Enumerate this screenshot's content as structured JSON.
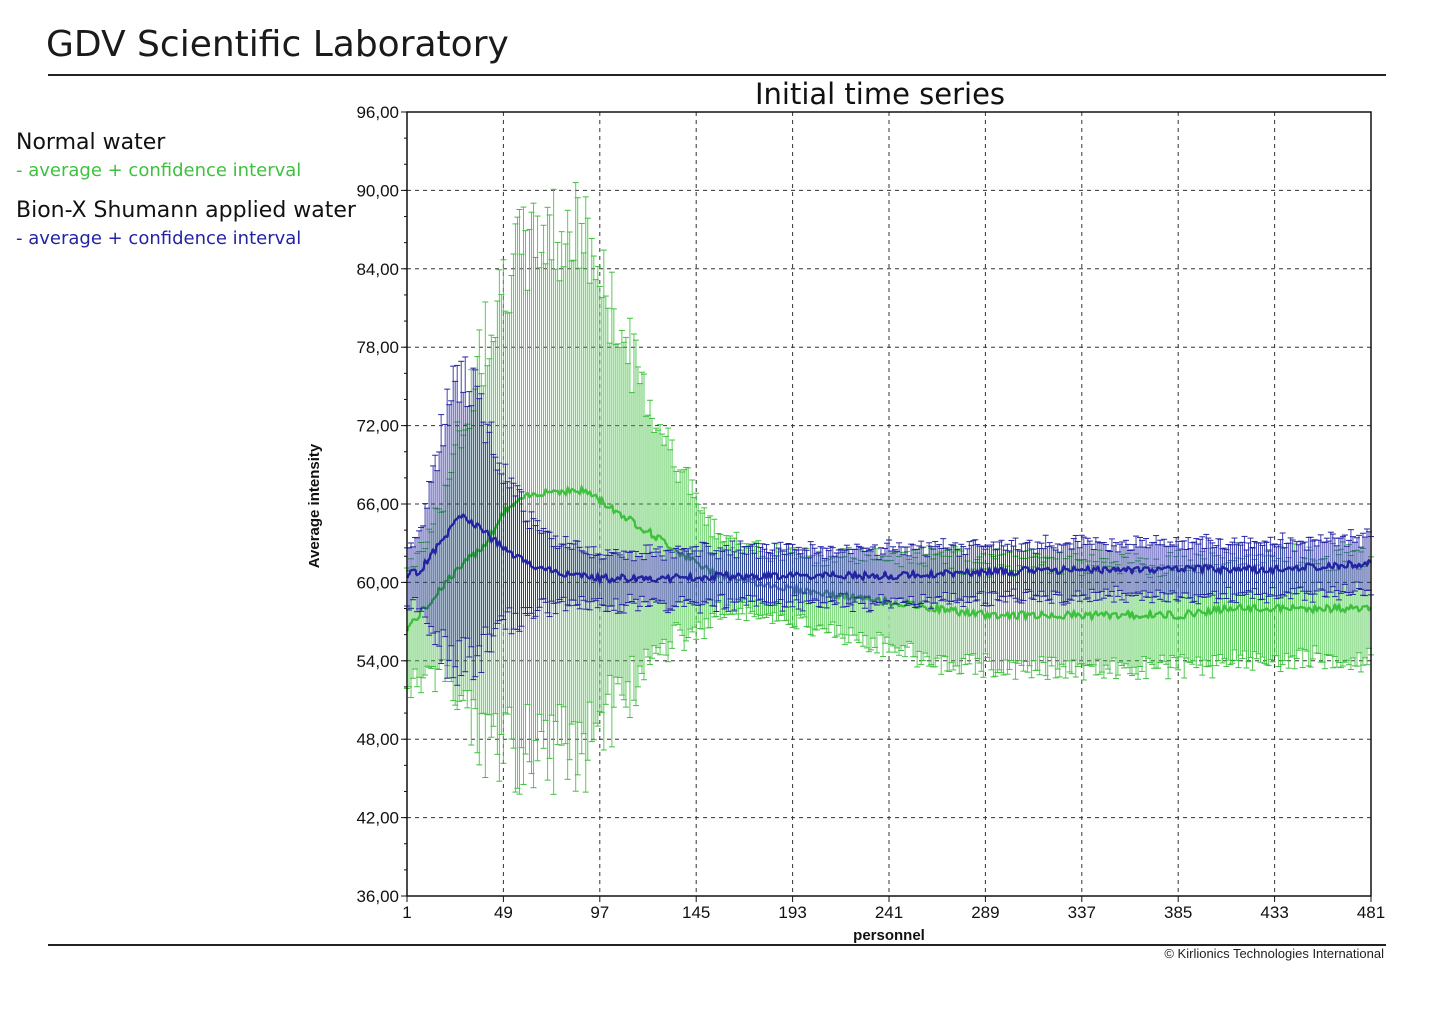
{
  "header": {
    "title": "GDV Scientific Laboratory",
    "copyright": "© Kirlionics Technologies International"
  },
  "legend": {
    "items": [
      {
        "name": "Normal water",
        "sub": "- average + confidence interval",
        "color": "#3ec13e"
      },
      {
        "name": "Bion-X Shumann applied water",
        "sub": "- average + confidence interval",
        "color": "#2323a3"
      }
    ]
  },
  "chart_data": {
    "type": "line",
    "title": "Initial time series",
    "xlabel": "personnel",
    "ylabel": "Average intensity",
    "xlim": [
      1,
      481
    ],
    "ylim": [
      36,
      96
    ],
    "x_ticks": [
      "1",
      "49",
      "97",
      "145",
      "193",
      "241",
      "289",
      "337",
      "385",
      "433",
      "481"
    ],
    "y_ticks": [
      "36,00",
      "42,00",
      "48,00",
      "54,00",
      "60,00",
      "66,00",
      "72,00",
      "78,00",
      "84,00",
      "90,00",
      "96,00"
    ],
    "grid": true,
    "series": [
      {
        "name": "Normal water",
        "color": "#3ec13e",
        "points": [
          {
            "x": 1,
            "y": 56.5,
            "ci": 4.5
          },
          {
            "x": 10,
            "y": 58.0,
            "ci": 5.0
          },
          {
            "x": 20,
            "y": 60.0,
            "ci": 7.0
          },
          {
            "x": 30,
            "y": 61.5,
            "ci": 11.0
          },
          {
            "x": 40,
            "y": 63.0,
            "ci": 16.0
          },
          {
            "x": 50,
            "y": 65.5,
            "ci": 18.5
          },
          {
            "x": 60,
            "y": 66.5,
            "ci": 19.0
          },
          {
            "x": 70,
            "y": 67.0,
            "ci": 20.0
          },
          {
            "x": 80,
            "y": 67.0,
            "ci": 20.0
          },
          {
            "x": 90,
            "y": 67.0,
            "ci": 19.5
          },
          {
            "x": 100,
            "y": 66.0,
            "ci": 16.0
          },
          {
            "x": 110,
            "y": 65.0,
            "ci": 13.5
          },
          {
            "x": 120,
            "y": 64.0,
            "ci": 10.5
          },
          {
            "x": 130,
            "y": 63.0,
            "ci": 8.0
          },
          {
            "x": 140,
            "y": 62.0,
            "ci": 6.0
          },
          {
            "x": 150,
            "y": 61.0,
            "ci": 4.0
          },
          {
            "x": 160,
            "y": 60.5,
            "ci": 2.8
          },
          {
            "x": 175,
            "y": 60.0,
            "ci": 2.5
          },
          {
            "x": 193,
            "y": 59.5,
            "ci": 2.5
          },
          {
            "x": 215,
            "y": 59.0,
            "ci": 3.0
          },
          {
            "x": 241,
            "y": 58.5,
            "ci": 3.5
          },
          {
            "x": 265,
            "y": 58.0,
            "ci": 4.0
          },
          {
            "x": 289,
            "y": 57.5,
            "ci": 4.0
          },
          {
            "x": 313,
            "y": 57.5,
            "ci": 4.0
          },
          {
            "x": 337,
            "y": 57.5,
            "ci": 4.0
          },
          {
            "x": 361,
            "y": 57.5,
            "ci": 4.0
          },
          {
            "x": 385,
            "y": 57.5,
            "ci": 4.0
          },
          {
            "x": 409,
            "y": 58.0,
            "ci": 4.0
          },
          {
            "x": 433,
            "y": 58.0,
            "ci": 4.0
          },
          {
            "x": 457,
            "y": 58.0,
            "ci": 4.0
          },
          {
            "x": 481,
            "y": 58.0,
            "ci": 4.0
          }
        ]
      },
      {
        "name": "Bion-X Shumann applied water",
        "color": "#2323a3",
        "points": [
          {
            "x": 1,
            "y": 60.5,
            "ci": 2.0
          },
          {
            "x": 8,
            "y": 61.0,
            "ci": 3.0
          },
          {
            "x": 15,
            "y": 62.5,
            "ci": 7.0
          },
          {
            "x": 22,
            "y": 64.0,
            "ci": 10.0
          },
          {
            "x": 28,
            "y": 65.0,
            "ci": 11.0
          },
          {
            "x": 35,
            "y": 64.5,
            "ci": 10.0
          },
          {
            "x": 42,
            "y": 63.5,
            "ci": 8.0
          },
          {
            "x": 50,
            "y": 62.5,
            "ci": 6.0
          },
          {
            "x": 60,
            "y": 61.5,
            "ci": 4.0
          },
          {
            "x": 70,
            "y": 61.0,
            "ci": 2.8
          },
          {
            "x": 85,
            "y": 60.5,
            "ci": 2.2
          },
          {
            "x": 100,
            "y": 60.3,
            "ci": 2.0
          },
          {
            "x": 130,
            "y": 60.3,
            "ci": 2.0
          },
          {
            "x": 160,
            "y": 60.5,
            "ci": 2.0
          },
          {
            "x": 193,
            "y": 60.5,
            "ci": 2.0
          },
          {
            "x": 241,
            "y": 60.5,
            "ci": 2.0
          },
          {
            "x": 289,
            "y": 60.8,
            "ci": 2.0
          },
          {
            "x": 337,
            "y": 61.0,
            "ci": 2.0
          },
          {
            "x": 385,
            "y": 61.0,
            "ci": 2.0
          },
          {
            "x": 433,
            "y": 61.0,
            "ci": 2.0
          },
          {
            "x": 481,
            "y": 61.5,
            "ci": 2.0
          }
        ]
      }
    ]
  }
}
